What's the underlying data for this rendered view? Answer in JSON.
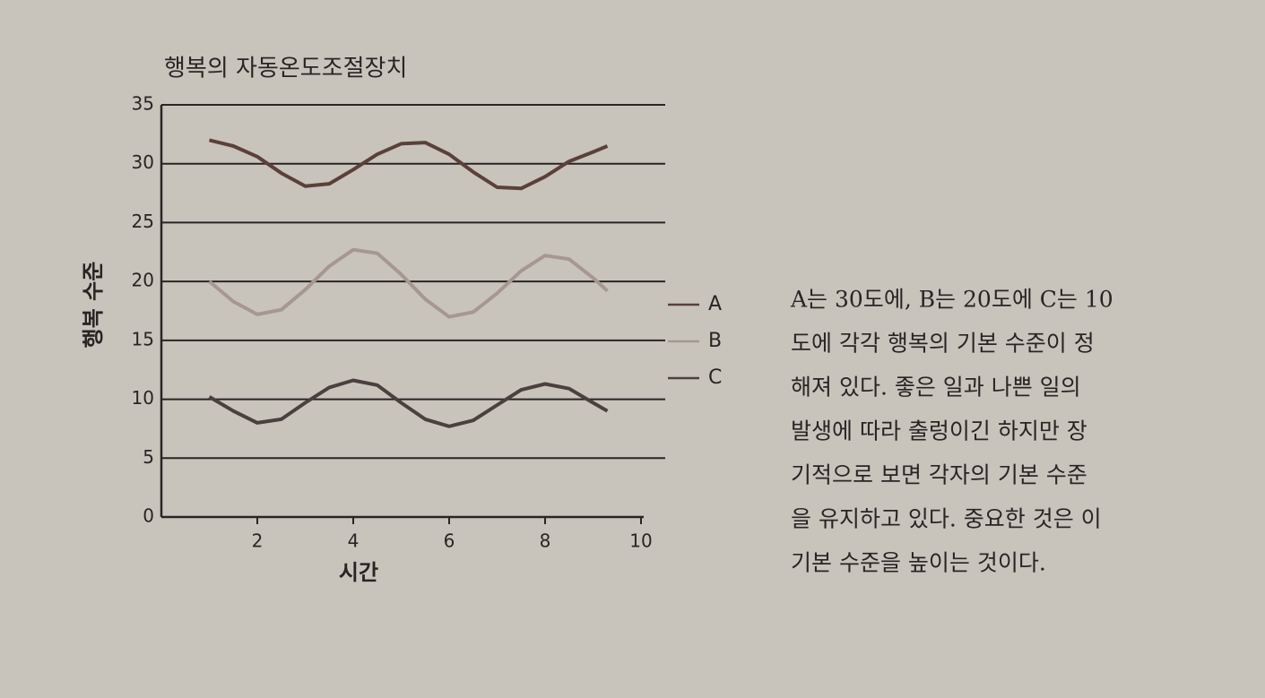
{
  "chart_data": {
    "type": "line",
    "title": "행복의 자동온도조절장치",
    "x_label": "시간",
    "y_label": "행복 수준",
    "x": [
      1,
      1.5,
      2,
      2.5,
      3,
      3.5,
      4,
      4.5,
      5,
      5.5,
      6,
      6.5,
      7,
      7.5,
      8,
      8.5,
      9,
      9.3
    ],
    "series": [
      {
        "name": "A",
        "color": "#5b4039",
        "values": [
          32,
          31.5,
          30.6,
          29.2,
          28.1,
          28.3,
          29.5,
          30.8,
          31.7,
          31.8,
          30.8,
          29.3,
          28.0,
          27.9,
          28.9,
          30.2,
          31.0,
          31.5
        ]
      },
      {
        "name": "B",
        "color": "#a69891",
        "values": [
          20,
          18.3,
          17.2,
          17.6,
          19.3,
          21.3,
          22.7,
          22.4,
          20.6,
          18.5,
          17.0,
          17.4,
          19.0,
          20.9,
          22.2,
          21.9,
          20.3,
          19.2
        ]
      },
      {
        "name": "C",
        "color": "#4a403e",
        "values": [
          10.2,
          9.0,
          8.0,
          8.3,
          9.7,
          11.0,
          11.6,
          11.2,
          9.7,
          8.3,
          7.7,
          8.2,
          9.5,
          10.8,
          11.3,
          10.9,
          9.7,
          9.0
        ]
      }
    ],
    "xlim": [
      0,
      10
    ],
    "xticks": [
      2,
      4,
      6,
      8,
      10
    ],
    "ylim": [
      0,
      35
    ],
    "yticks": [
      0,
      5,
      10,
      15,
      20,
      25,
      30,
      35
    ],
    "grid": true,
    "legend": "right"
  },
  "caption": [
    "A는 30도에, B는 20도에 C는 10",
    "도에 각각 행복의 기본 수준이 정",
    "해져 있다. 좋은 일과 나쁜 일의",
    "발생에 따라 출렁이긴 하지만 장",
    "기적으로 보면 각자의 기본 수준",
    "을 유지하고 있다. 중요한 것은 이",
    "기본 수준을 높이는 것이다."
  ]
}
